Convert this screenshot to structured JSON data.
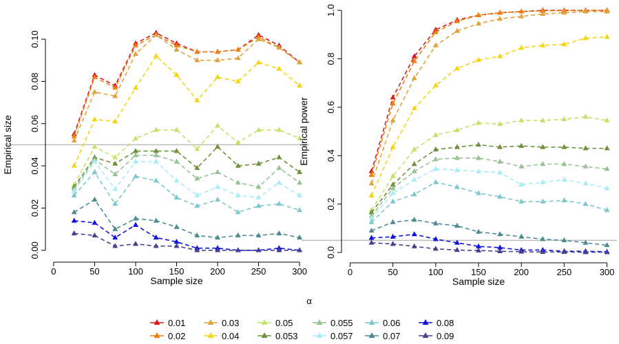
{
  "legend_title": "α",
  "chart_data": [
    {
      "type": "line",
      "xlabel": "Sample size",
      "ylabel": "Empirical size",
      "xlim": [
        -10,
        310
      ],
      "ylim": [
        -0.003,
        0.114
      ],
      "xticks": [
        0,
        50,
        100,
        150,
        200,
        250,
        300
      ],
      "yticks": [
        0.0,
        0.02,
        0.04,
        0.06,
        0.08,
        0.1
      ],
      "ytick_labels": [
        "0.00",
        "0.02",
        "0.04",
        "0.06",
        "0.08",
        "0.10"
      ],
      "reference_line": 0.05,
      "x": [
        25,
        50,
        75,
        100,
        125,
        150,
        175,
        200,
        225,
        250,
        275,
        300
      ],
      "series": [
        {
          "name": "0.01",
          "color": "#d7191c",
          "values": [
            0.055,
            0.083,
            0.078,
            0.098,
            0.103,
            0.098,
            0.094,
            0.094,
            0.095,
            0.102,
            0.097,
            0.089
          ]
        },
        {
          "name": "0.02",
          "color": "#f07f0e",
          "values": [
            0.054,
            0.082,
            0.077,
            0.097,
            0.102,
            0.097,
            0.094,
            0.094,
            0.095,
            0.101,
            0.096,
            0.089
          ]
        },
        {
          "name": "0.03",
          "color": "#e0a23c",
          "values": [
            0.052,
            0.075,
            0.073,
            0.093,
            0.102,
            0.095,
            0.09,
            0.09,
            0.091,
            0.1,
            0.096,
            0.089
          ]
        },
        {
          "name": "0.04",
          "color": "#f5d410",
          "values": [
            0.04,
            0.062,
            0.061,
            0.077,
            0.092,
            0.083,
            0.071,
            0.082,
            0.08,
            0.089,
            0.086,
            0.078
          ]
        },
        {
          "name": "0.05",
          "color": "#c2e36a",
          "values": [
            0.031,
            0.049,
            0.044,
            0.053,
            0.057,
            0.057,
            0.048,
            0.059,
            0.051,
            0.057,
            0.057,
            0.053
          ]
        },
        {
          "name": "0.053",
          "color": "#6f8f3a",
          "values": [
            0.03,
            0.044,
            0.041,
            0.047,
            0.047,
            0.047,
            0.039,
            0.049,
            0.04,
            0.041,
            0.044,
            0.037
          ]
        },
        {
          "name": "0.055",
          "color": "#97c294",
          "values": [
            0.029,
            0.043,
            0.036,
            0.045,
            0.045,
            0.042,
            0.034,
            0.037,
            0.032,
            0.03,
            0.039,
            0.032
          ]
        },
        {
          "name": "0.057",
          "color": "#a8ecf5",
          "values": [
            0.028,
            0.042,
            0.029,
            0.042,
            0.042,
            0.033,
            0.026,
            0.03,
            0.026,
            0.025,
            0.032,
            0.026
          ]
        },
        {
          "name": "0.06",
          "color": "#7cc8cc",
          "values": [
            0.026,
            0.037,
            0.022,
            0.035,
            0.033,
            0.025,
            0.021,
            0.024,
            0.018,
            0.021,
            0.022,
            0.019
          ]
        },
        {
          "name": "0.07",
          "color": "#4e8a91",
          "values": [
            0.018,
            0.024,
            0.01,
            0.015,
            0.014,
            0.011,
            0.007,
            0.006,
            0.007,
            0.007,
            0.008,
            0.006
          ]
        },
        {
          "name": "0.08",
          "color": "#1010e0",
          "values": [
            0.014,
            0.013,
            0.006,
            0.012,
            0.006,
            0.004,
            0.001,
            0.001,
            0.0,
            0.0,
            0.001,
            0.0
          ]
        },
        {
          "name": "0.09",
          "color": "#46418c",
          "values": [
            0.008,
            0.007,
            0.002,
            0.003,
            0.002,
            0.002,
            0.0,
            0.0,
            0.0,
            0.0,
            0.0,
            0.0
          ]
        }
      ]
    },
    {
      "type": "line",
      "xlabel": "Sample size",
      "ylabel": "Empirical power",
      "xlim": [
        -10,
        310
      ],
      "ylim": [
        -0.02,
        1.02
      ],
      "xticks": [
        0,
        50,
        100,
        150,
        200,
        250,
        300
      ],
      "yticks": [
        0.0,
        0.2,
        0.4,
        0.6,
        0.8,
        1.0
      ],
      "ytick_labels": [
        "0.0",
        "0.2",
        "0.4",
        "0.6",
        "0.8",
        "1.0"
      ],
      "reference_line": 0.05,
      "x": [
        25,
        50,
        75,
        100,
        125,
        150,
        175,
        200,
        225,
        250,
        275,
        300
      ],
      "series": [
        {
          "name": "0.01",
          "color": "#d7191c",
          "values": [
            0.335,
            0.64,
            0.81,
            0.92,
            0.96,
            0.98,
            0.99,
            0.995,
            1.0,
            1.0,
            1.0,
            1.0
          ]
        },
        {
          "name": "0.02",
          "color": "#f07f0e",
          "values": [
            0.32,
            0.615,
            0.79,
            0.91,
            0.955,
            0.98,
            0.99,
            0.995,
            0.998,
            0.999,
            0.999,
            1.0
          ]
        },
        {
          "name": "0.03",
          "color": "#e0a23c",
          "values": [
            0.285,
            0.545,
            0.72,
            0.855,
            0.915,
            0.945,
            0.965,
            0.975,
            0.985,
            0.99,
            0.995,
            0.995
          ]
        },
        {
          "name": "0.04",
          "color": "#f5d410",
          "values": [
            0.235,
            0.435,
            0.595,
            0.69,
            0.76,
            0.795,
            0.81,
            0.845,
            0.855,
            0.86,
            0.885,
            0.89
          ]
        },
        {
          "name": "0.05",
          "color": "#c2e36a",
          "values": [
            0.175,
            0.315,
            0.425,
            0.485,
            0.505,
            0.535,
            0.53,
            0.545,
            0.545,
            0.55,
            0.56,
            0.545
          ]
        },
        {
          "name": "0.053",
          "color": "#6f8f3a",
          "values": [
            0.165,
            0.28,
            0.365,
            0.425,
            0.435,
            0.445,
            0.435,
            0.44,
            0.435,
            0.435,
            0.43,
            0.43
          ]
        },
        {
          "name": "0.055",
          "color": "#97c294",
          "values": [
            0.15,
            0.265,
            0.335,
            0.385,
            0.39,
            0.39,
            0.375,
            0.355,
            0.365,
            0.365,
            0.355,
            0.345
          ]
        },
        {
          "name": "0.057",
          "color": "#a8ecf5",
          "values": [
            0.14,
            0.245,
            0.3,
            0.345,
            0.34,
            0.335,
            0.33,
            0.28,
            0.29,
            0.3,
            0.285,
            0.265
          ]
        },
        {
          "name": "0.06",
          "color": "#7cc8cc",
          "values": [
            0.125,
            0.21,
            0.24,
            0.29,
            0.27,
            0.245,
            0.23,
            0.21,
            0.21,
            0.215,
            0.2,
            0.175
          ]
        },
        {
          "name": "0.07",
          "color": "#4e8a91",
          "values": [
            0.09,
            0.125,
            0.135,
            0.12,
            0.11,
            0.085,
            0.075,
            0.065,
            0.055,
            0.05,
            0.04,
            0.03
          ]
        },
        {
          "name": "0.08",
          "color": "#1010e0",
          "values": [
            0.06,
            0.065,
            0.075,
            0.055,
            0.04,
            0.025,
            0.02,
            0.01,
            0.01,
            0.005,
            0.005,
            0.003
          ]
        },
        {
          "name": "0.09",
          "color": "#46418c",
          "values": [
            0.04,
            0.035,
            0.025,
            0.015,
            0.01,
            0.008,
            0.005,
            0.003,
            0.002,
            0.002,
            0.001,
            0.001
          ]
        }
      ]
    }
  ]
}
